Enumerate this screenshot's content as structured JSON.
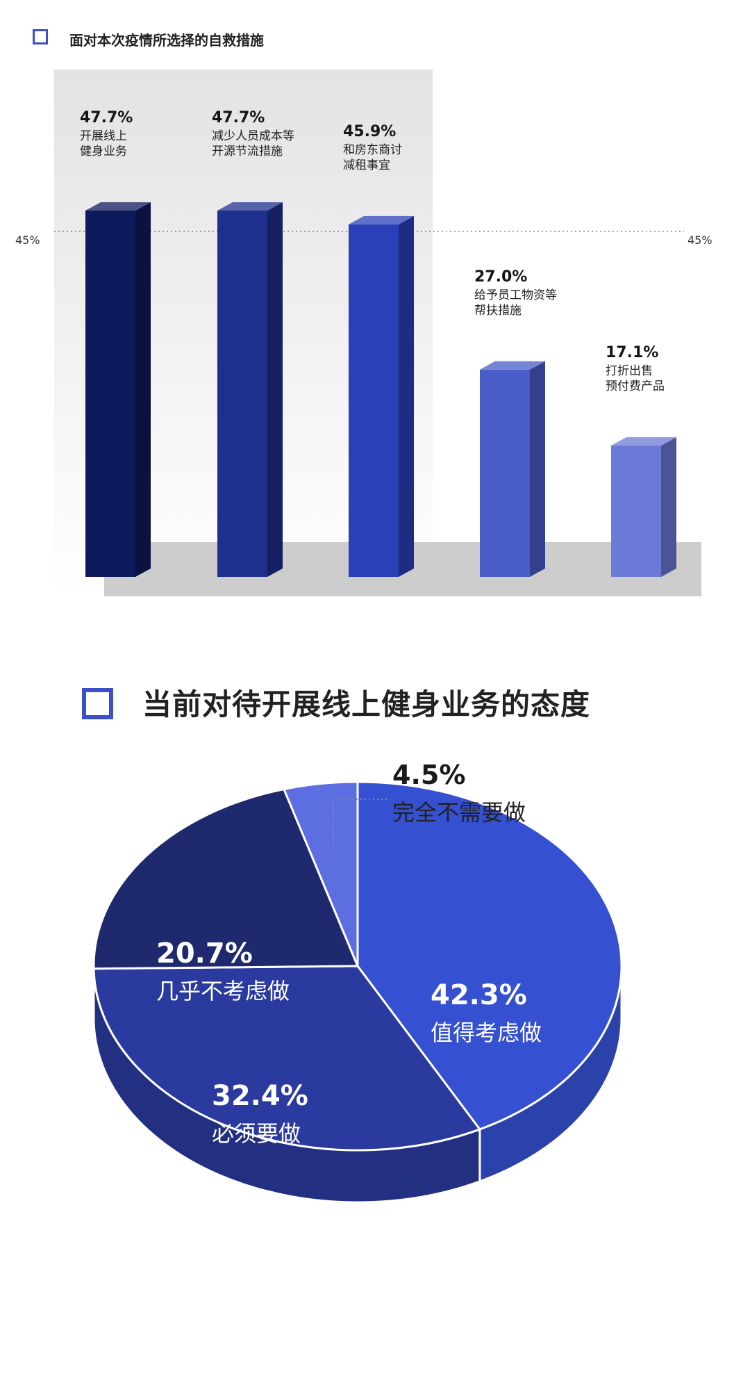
{
  "bar_section": {
    "title": "面对本次疫情所选择的自救措施",
    "ref_line_label": "45%"
  },
  "pie_section": {
    "title": "当前对待开展线上健身业务的态度"
  },
  "colors": {
    "accent": "#3d4fc6"
  },
  "chart_data": [
    {
      "type": "bar",
      "title": "面对本次疫情所选择的自救措施",
      "categories": [
        "开展线上健身业务",
        "减少人员成本等开源节流措施",
        "和房东商讨减租事宜",
        "给予员工物资等帮扶措施",
        "打折出售预付费产品"
      ],
      "category_lines": [
        [
          "开展线上",
          "健身业务"
        ],
        [
          "减少人员成本等",
          "开源节流措施"
        ],
        [
          "和房东商讨",
          "减租事宜"
        ],
        [
          "给予员工物资等",
          "帮扶措施"
        ],
        [
          "打折出售",
          "预付费产品"
        ]
      ],
      "values": [
        47.7,
        47.7,
        45.9,
        27.0,
        17.1
      ],
      "value_labels": [
        "47.7%",
        "47.7%",
        "45.9%",
        "27.0%",
        "17.1%"
      ],
      "reference_line": 45,
      "colors": [
        "#0f1a5c",
        "#1e2f8c",
        "#2a40b8",
        "#4a5cc8",
        "#6b7ad6"
      ],
      "ylim": [
        0,
        50
      ]
    },
    {
      "type": "pie",
      "title": "当前对待开展线上健身业务的态度",
      "slices": [
        {
          "label": "值得考虑做",
          "value": 42.3,
          "value_label": "42.3%",
          "color": "#3550d0"
        },
        {
          "label": "必须要做",
          "value": 32.4,
          "value_label": "32.4%",
          "color": "#2b3a9e"
        },
        {
          "label": "几乎不考虑做",
          "value": 20.7,
          "value_label": "20.7%",
          "color": "#1f2a6e"
        },
        {
          "label": "完全不需要做",
          "value": 4.5,
          "value_label": "4.5%",
          "color": "#5d6ee0"
        }
      ]
    }
  ]
}
